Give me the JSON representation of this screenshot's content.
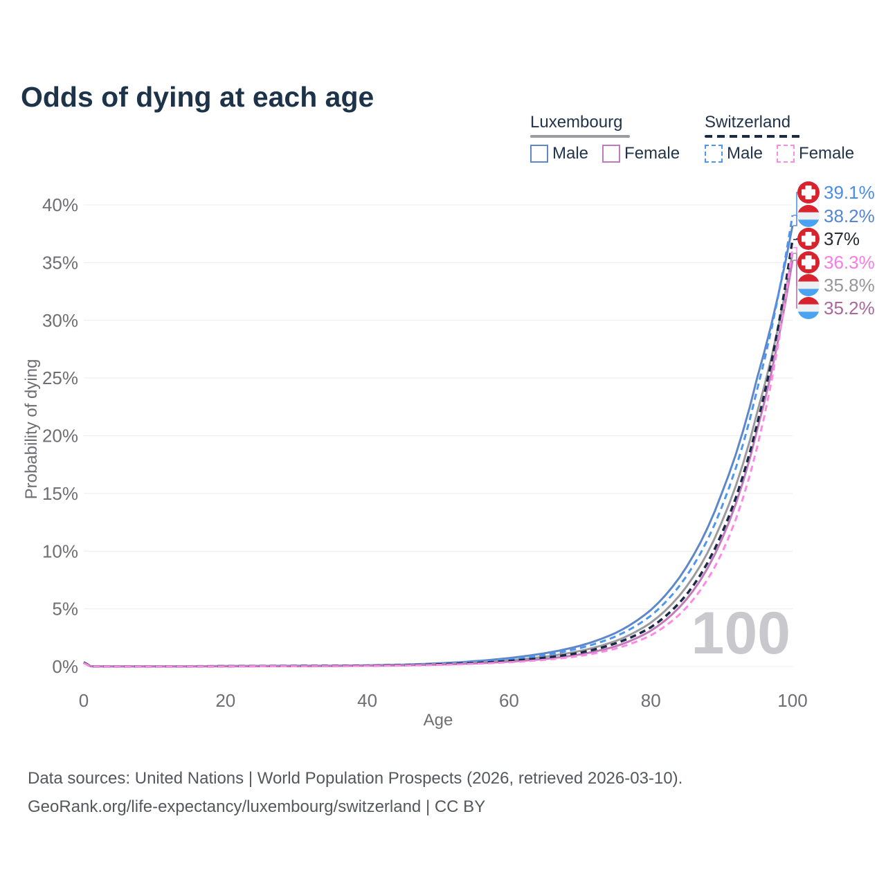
{
  "title": "Odds of dying at each age",
  "legend": {
    "groups": [
      {
        "name": "Luxembourg",
        "line_style": "solid",
        "underline_color": "#9a9aa0",
        "items": [
          {
            "label": "Male",
            "series": "lux_male",
            "color": "#5e87c9"
          },
          {
            "label": "Female",
            "series": "lux_female",
            "color": "#c07abc"
          }
        ]
      },
      {
        "name": "Switzerland",
        "line_style": "dashed",
        "underline_color": "#1b2a44",
        "items": [
          {
            "label": "Male",
            "series": "swiss_male",
            "color": "#4e95f1"
          },
          {
            "label": "Female",
            "series": "swiss_female",
            "color": "#fb8ae3"
          }
        ]
      }
    ]
  },
  "chart_data": {
    "type": "line",
    "title": "Odds of dying at each age",
    "xlabel": "Age",
    "ylabel": "Probability of dying",
    "xlim": [
      0,
      100
    ],
    "ylim": [
      0,
      40
    ],
    "x_ticks": [
      0,
      20,
      40,
      60,
      80,
      100
    ],
    "y_ticks": [
      0,
      5,
      10,
      15,
      20,
      25,
      30,
      35,
      40
    ],
    "y_tick_suffix": "%",
    "grid": "horizontal",
    "legend_position": "top-right",
    "watermark": "100",
    "ages": [
      0,
      1,
      5,
      10,
      15,
      20,
      25,
      30,
      35,
      40,
      45,
      50,
      55,
      60,
      65,
      70,
      75,
      80,
      85,
      90,
      95,
      100
    ],
    "series": [
      {
        "id": "lux_male",
        "name": "Luxembourg Male",
        "country": "Luxembourg",
        "sex": "Male",
        "color": "#5e87c9",
        "dash": "solid",
        "width": 3,
        "values": [
          0.4,
          0.03,
          0.01,
          0.01,
          0.02,
          0.05,
          0.06,
          0.07,
          0.08,
          0.11,
          0.17,
          0.28,
          0.46,
          0.74,
          1.15,
          1.8,
          2.9,
          4.9,
          8.6,
          15.0,
          25.0,
          38.2
        ]
      },
      {
        "id": "lux_total",
        "name": "Luxembourg",
        "country": "Luxembourg",
        "sex": "Both",
        "color": "#9b9b9f",
        "dash": "solid",
        "width": 3,
        "values": [
          0.38,
          0.03,
          0.01,
          0.01,
          0.02,
          0.04,
          0.04,
          0.05,
          0.06,
          0.09,
          0.13,
          0.21,
          0.34,
          0.55,
          0.85,
          1.35,
          2.2,
          3.8,
          6.9,
          12.5,
          22.0,
          35.8
        ]
      },
      {
        "id": "lux_female",
        "name": "Luxembourg Female",
        "country": "Luxembourg",
        "sex": "Female",
        "color": "#c07abc",
        "dash": "solid",
        "width": 3,
        "values": [
          0.35,
          0.02,
          0.01,
          0.01,
          0.01,
          0.02,
          0.03,
          0.03,
          0.05,
          0.07,
          0.11,
          0.17,
          0.27,
          0.43,
          0.66,
          1.05,
          1.75,
          3.1,
          5.8,
          11.0,
          20.5,
          35.2
        ]
      },
      {
        "id": "swiss_male",
        "name": "Switzerland Male",
        "country": "Switzerland",
        "sex": "Male",
        "color": "#4e95f1",
        "dash": "9 6",
        "width": 3,
        "values": [
          0.35,
          0.02,
          0.01,
          0.01,
          0.02,
          0.04,
          0.05,
          0.06,
          0.07,
          0.1,
          0.15,
          0.24,
          0.4,
          0.65,
          1.0,
          1.6,
          2.6,
          4.4,
          7.8,
          13.8,
          24.0,
          39.1
        ]
      },
      {
        "id": "swiss_total",
        "name": "Switzerland",
        "country": "Switzerland",
        "sex": "Both",
        "color": "#1b2a44",
        "dash": "9 6",
        "width": 3.5,
        "values": [
          0.33,
          0.02,
          0.01,
          0.01,
          0.02,
          0.03,
          0.04,
          0.05,
          0.06,
          0.08,
          0.12,
          0.19,
          0.3,
          0.49,
          0.76,
          1.2,
          2.0,
          3.4,
          6.2,
          11.5,
          21.0,
          37.0
        ]
      },
      {
        "id": "swiss_female",
        "name": "Switzerland Female",
        "country": "Switzerland",
        "sex": "Female",
        "color": "#fb8ae3",
        "dash": "9 6",
        "width": 3,
        "values": [
          0.3,
          0.02,
          0.01,
          0.01,
          0.01,
          0.02,
          0.03,
          0.03,
          0.04,
          0.06,
          0.1,
          0.15,
          0.24,
          0.38,
          0.58,
          0.92,
          1.55,
          2.7,
          5.1,
          9.8,
          19.0,
          36.3
        ]
      }
    ],
    "end_labels": [
      {
        "text": "39.1%",
        "value": 39.1,
        "flag": "ch",
        "series": "swiss_male",
        "color": "#4a8ce8",
        "leader_color": "#4e95f1"
      },
      {
        "text": "38.2%",
        "value": 38.2,
        "flag": "lu",
        "series": "lux_male",
        "color": "#5585d3",
        "leader_color": "#5e87c9"
      },
      {
        "text": "37%",
        "value": 37.0,
        "flag": "ch",
        "series": "swiss_total",
        "color": "#272b31",
        "leader_color": "#1b2a44"
      },
      {
        "text": "36.3%",
        "value": 36.3,
        "flag": "ch",
        "series": "swiss_female",
        "color": "#f77ce4",
        "leader_color": "#fb8ae3"
      },
      {
        "text": "35.8%",
        "value": 35.8,
        "flag": "lu",
        "series": "lux_total",
        "color": "#96969b",
        "leader_color": "#9b9b9f"
      },
      {
        "text": "35.2%",
        "value": 35.2,
        "flag": "lu",
        "series": "lux_female",
        "color": "#a8679f",
        "leader_color": "#b671b1"
      }
    ],
    "flag_colors": {
      "swiss_red": "#d8222d",
      "lux_red": "#d8222d",
      "lux_white": "#edeff2",
      "lux_blue": "#4aa2f3",
      "cross_white": "#ffffff"
    },
    "style": {
      "grid_color": "#ececef",
      "tick_color": "#6e6e73",
      "watermark_color": "#c9c9cd"
    }
  },
  "footer": {
    "line1": "Data sources: United Nations | World Population Prospects (2026, retrieved 2026-03-10).",
    "line2": "GeoRank.org/life-expectancy/luxembourg/switzerland | CC BY"
  }
}
